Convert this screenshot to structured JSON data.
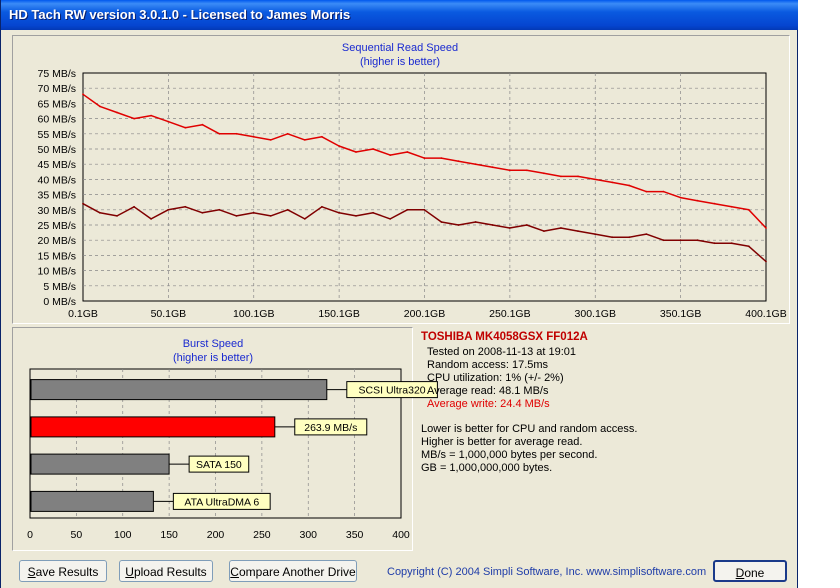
{
  "window": {
    "title": "HD Tach RW version 3.0.1.0 - Licensed to James Morris"
  },
  "seq_chart": {
    "title": "Sequential Read Speed",
    "subtitle": "(higher is better)",
    "y_ticks": [
      "75 MB/s",
      "70 MB/s",
      "65 MB/s",
      "60 MB/s",
      "55 MB/s",
      "50 MB/s",
      "45 MB/s",
      "40 MB/s",
      "35 MB/s",
      "30 MB/s",
      "25 MB/s",
      "20 MB/s",
      "15 MB/s",
      "10 MB/s",
      "5 MB/s",
      "0 MB/s"
    ],
    "x_ticks": [
      "0.1GB",
      "50.1GB",
      "100.1GB",
      "150.1GB",
      "200.1GB",
      "250.1GB",
      "300.1GB",
      "350.1GB",
      "400.1GB"
    ]
  },
  "burst_chart": {
    "title": "Burst Speed",
    "subtitle": "(higher is better)",
    "x_ticks": [
      "0",
      "50",
      "100",
      "150",
      "200",
      "250",
      "300",
      "350",
      "400"
    ]
  },
  "chart_data": [
    {
      "type": "line",
      "title": "Sequential Read Speed",
      "subtitle": "(higher is better)",
      "xlabel": "",
      "ylabel": "",
      "xlim": [
        0.1,
        400.1
      ],
      "ylim": [
        0,
        75
      ],
      "grid": true,
      "series": [
        {
          "color": "#e00000",
          "x": [
            0.1,
            10,
            20,
            30,
            40,
            50,
            60,
            70,
            80,
            90,
            100,
            110,
            120,
            130,
            140,
            150,
            160,
            170,
            180,
            190,
            200,
            210,
            220,
            230,
            240,
            250,
            260,
            270,
            280,
            290,
            300,
            310,
            320,
            330,
            340,
            350,
            360,
            370,
            380,
            390,
            400.1
          ],
          "y": [
            68,
            64,
            62,
            60,
            61,
            59,
            57,
            58,
            55,
            55,
            54,
            53,
            55,
            53,
            54,
            51,
            49,
            50,
            48,
            49,
            47,
            47,
            46,
            45,
            44,
            43,
            43,
            42,
            41,
            41,
            40,
            39,
            38,
            36,
            36,
            34,
            33,
            32,
            31,
            30,
            24
          ]
        },
        {
          "color": "#800000",
          "x": [
            0.1,
            10,
            20,
            30,
            40,
            50,
            60,
            70,
            80,
            90,
            100,
            110,
            120,
            130,
            140,
            150,
            160,
            170,
            180,
            190,
            200,
            210,
            220,
            230,
            240,
            250,
            260,
            270,
            280,
            290,
            300,
            310,
            320,
            330,
            340,
            350,
            360,
            370,
            380,
            390,
            400.1
          ],
          "y": [
            32,
            29,
            28,
            31,
            27,
            30,
            31,
            29,
            30,
            28,
            29,
            28,
            30,
            27,
            31,
            29,
            28,
            29,
            27,
            30,
            30,
            26,
            25,
            26,
            25,
            24,
            25,
            23,
            24,
            23,
            22,
            21,
            21,
            22,
            20,
            20,
            20,
            19,
            19,
            18,
            13
          ]
        }
      ]
    },
    {
      "type": "bar",
      "title": "Burst Speed",
      "subtitle": "(higher is better)",
      "orientation": "horizontal",
      "xlim": [
        0,
        400
      ],
      "categories": [
        "SCSI Ultra320",
        "263.9 MB/s",
        "SATA 150",
        "ATA UltraDMA 6"
      ],
      "values": [
        320,
        263.9,
        150,
        133
      ],
      "colors": [
        "#808080",
        "#ff0000",
        "#808080",
        "#808080"
      ]
    }
  ],
  "info": {
    "drive": "TOSHIBA MK4058GSX FF012A",
    "tested": "Tested on 2008-11-13 at 19:01",
    "random_access": "Random access: 17.5ms",
    "cpu": "CPU utilization: 1% (+/- 2%)",
    "avg_read": "Average read: 48.1 MB/s",
    "avg_write": "Average write: 24.4 MB/s",
    "note1": "Lower is better for CPU and random access.",
    "note2": "Higher is better for average read.",
    "note3": "MB/s = 1,000,000 bytes per second.",
    "note4": "GB = 1,000,000,000 bytes."
  },
  "buttons": {
    "save_u": "S",
    "save_rest": "ave Results",
    "upload_u": "U",
    "upload_rest": "pload Results",
    "compare_u": "C",
    "compare_rest": "ompare Another Drive",
    "done_u": "D",
    "done_rest": "one"
  },
  "footer": {
    "copyright": "Copyright (C) 2004 Simpli Software, Inc. www.simplisoftware.com"
  }
}
